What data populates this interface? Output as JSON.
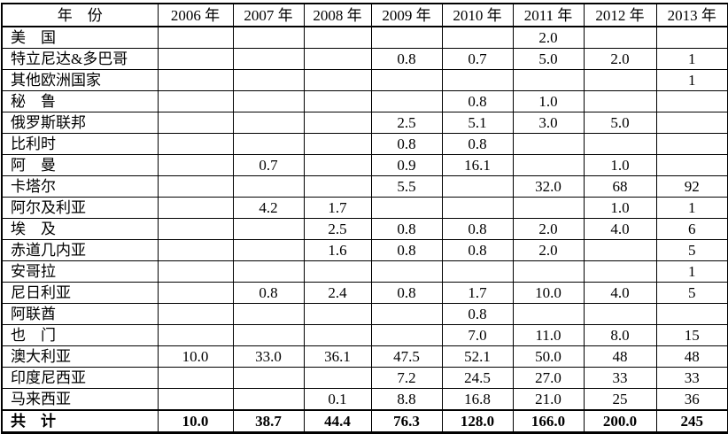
{
  "table": {
    "header": {
      "year_label": "年　份",
      "years": [
        "2006 年",
        "2007 年",
        "2008 年",
        "2009 年",
        "2010 年",
        "2011 年",
        "2012 年",
        "2013 年"
      ]
    },
    "rows": [
      {
        "name": "美　国",
        "values": [
          "",
          "",
          "",
          "",
          "",
          "2.0",
          "",
          ""
        ]
      },
      {
        "name": "特立尼达&多巴哥",
        "values": [
          "",
          "",
          "",
          "0.8",
          "0.7",
          "5.0",
          "2.0",
          "1"
        ]
      },
      {
        "name": "其他欧洲国家",
        "values": [
          "",
          "",
          "",
          "",
          "",
          "",
          "",
          "1"
        ]
      },
      {
        "name": "秘　鲁",
        "values": [
          "",
          "",
          "",
          "",
          "0.8",
          "1.0",
          "",
          ""
        ]
      },
      {
        "name": "俄罗斯联邦",
        "values": [
          "",
          "",
          "",
          "2.5",
          "5.1",
          "3.0",
          "5.0",
          ""
        ]
      },
      {
        "name": "比利时",
        "values": [
          "",
          "",
          "",
          "0.8",
          "0.8",
          "",
          "",
          ""
        ]
      },
      {
        "name": "阿　曼",
        "values": [
          "",
          "0.7",
          "",
          "0.9",
          "16.1",
          "",
          "1.0",
          ""
        ]
      },
      {
        "name": "卡塔尔",
        "values": [
          "",
          "",
          "",
          "5.5",
          "",
          "32.0",
          "68",
          "92"
        ]
      },
      {
        "name": "阿尔及利亚",
        "values": [
          "",
          "4.2",
          "1.7",
          "",
          "",
          "",
          "1.0",
          "1"
        ]
      },
      {
        "name": "埃　及",
        "values": [
          "",
          "",
          "2.5",
          "0.8",
          "0.8",
          "2.0",
          "4.0",
          "6"
        ]
      },
      {
        "name": "赤道几内亚",
        "values": [
          "",
          "",
          "1.6",
          "0.8",
          "0.8",
          "2.0",
          "",
          "5"
        ]
      },
      {
        "name": "安哥拉",
        "values": [
          "",
          "",
          "",
          "",
          "",
          "",
          "",
          "1"
        ]
      },
      {
        "name": "尼日利亚",
        "values": [
          "",
          "0.8",
          "2.4",
          "0.8",
          "1.7",
          "10.0",
          "4.0",
          "5"
        ]
      },
      {
        "name": "阿联酋",
        "values": [
          "",
          "",
          "",
          "",
          "0.8",
          "",
          "",
          ""
        ]
      },
      {
        "name": "也　门",
        "values": [
          "",
          "",
          "",
          "",
          "7.0",
          "11.0",
          "8.0",
          "15"
        ]
      },
      {
        "name": "澳大利亚",
        "values": [
          "10.0",
          "33.0",
          "36.1",
          "47.5",
          "52.1",
          "50.0",
          "48",
          "48"
        ]
      },
      {
        "name": "印度尼西亚",
        "values": [
          "",
          "",
          "",
          "7.2",
          "24.5",
          "27.0",
          "33",
          "33"
        ]
      },
      {
        "name": "马来西亚",
        "values": [
          "",
          "",
          "0.1",
          "8.8",
          "16.8",
          "21.0",
          "25",
          "36"
        ]
      }
    ],
    "total_row": {
      "name": "共　计",
      "values": [
        "10.0",
        "38.7",
        "44.4",
        "76.3",
        "128.0",
        "166.0",
        "200.0",
        "245"
      ]
    },
    "colors": {
      "border": "#000000",
      "text": "#000000",
      "background": "#ffffff"
    }
  }
}
